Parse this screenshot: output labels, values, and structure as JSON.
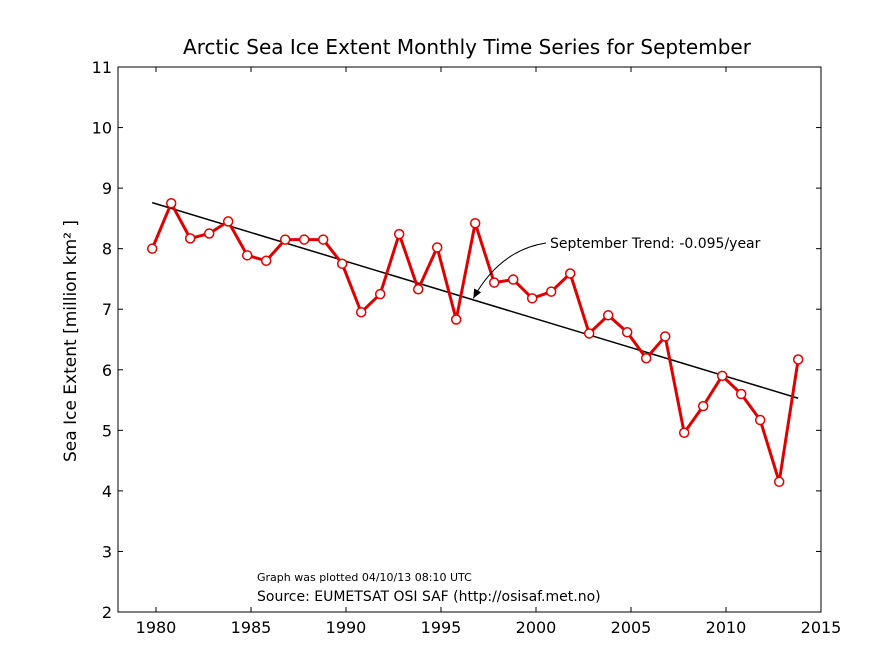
{
  "chart_data": {
    "type": "line",
    "title": "Arctic Sea Ice Extent Monthly Time Series for September",
    "ylabel": "Sea Ice Extent [million km² ]",
    "xlabel": "",
    "xlim": [
      1978,
      2015
    ],
    "ylim": [
      2,
      11
    ],
    "xticks": [
      1980,
      1985,
      1990,
      1995,
      2000,
      2005,
      2010,
      2015
    ],
    "yticks": [
      2,
      3,
      4,
      5,
      6,
      7,
      8,
      9,
      10,
      11
    ],
    "grid": false,
    "series": [
      {
        "color": "#e00000",
        "marker": "circle",
        "points": [
          [
            1979.8,
            8.0
          ],
          [
            1980.8,
            8.75
          ],
          [
            1981.8,
            8.17
          ],
          [
            1982.8,
            8.25
          ],
          [
            1983.8,
            8.45
          ],
          [
            1984.8,
            7.89
          ],
          [
            1985.8,
            7.8
          ],
          [
            1986.8,
            8.15
          ],
          [
            1987.8,
            8.15
          ],
          [
            1988.8,
            8.15
          ],
          [
            1989.8,
            7.75
          ],
          [
            1990.8,
            6.95
          ],
          [
            1991.8,
            7.25
          ],
          [
            1992.8,
            8.24
          ],
          [
            1993.8,
            7.33
          ],
          [
            1994.8,
            8.02
          ],
          [
            1995.8,
            6.83
          ],
          [
            1996.8,
            8.42
          ],
          [
            1997.8,
            7.44
          ],
          [
            1998.8,
            7.49
          ],
          [
            1999.8,
            7.18
          ],
          [
            2000.8,
            7.29
          ],
          [
            2001.8,
            7.59
          ],
          [
            2002.8,
            6.6
          ],
          [
            2003.8,
            6.9
          ],
          [
            2004.8,
            6.62
          ],
          [
            2005.8,
            6.19
          ],
          [
            2006.8,
            6.55
          ],
          [
            2007.8,
            4.96
          ],
          [
            2008.8,
            5.4
          ],
          [
            2009.8,
            5.9
          ],
          [
            2010.8,
            5.6
          ],
          [
            2011.8,
            5.17
          ],
          [
            2012.8,
            4.15
          ],
          [
            2013.8,
            6.17
          ]
        ]
      }
    ],
    "trend_line": {
      "color": "#000000",
      "start": [
        1979.8,
        8.76
      ],
      "end": [
        2013.8,
        5.53
      ]
    },
    "annotation": {
      "text": "September Trend: -0.095/year",
      "arrow_to": [
        1996.7,
        7.18
      ]
    },
    "footer_small": "Graph was plotted 04/10/13 08:10 UTC",
    "footer_source": "Source: EUMETSAT OSI SAF (http://osisaf.met.no)"
  }
}
